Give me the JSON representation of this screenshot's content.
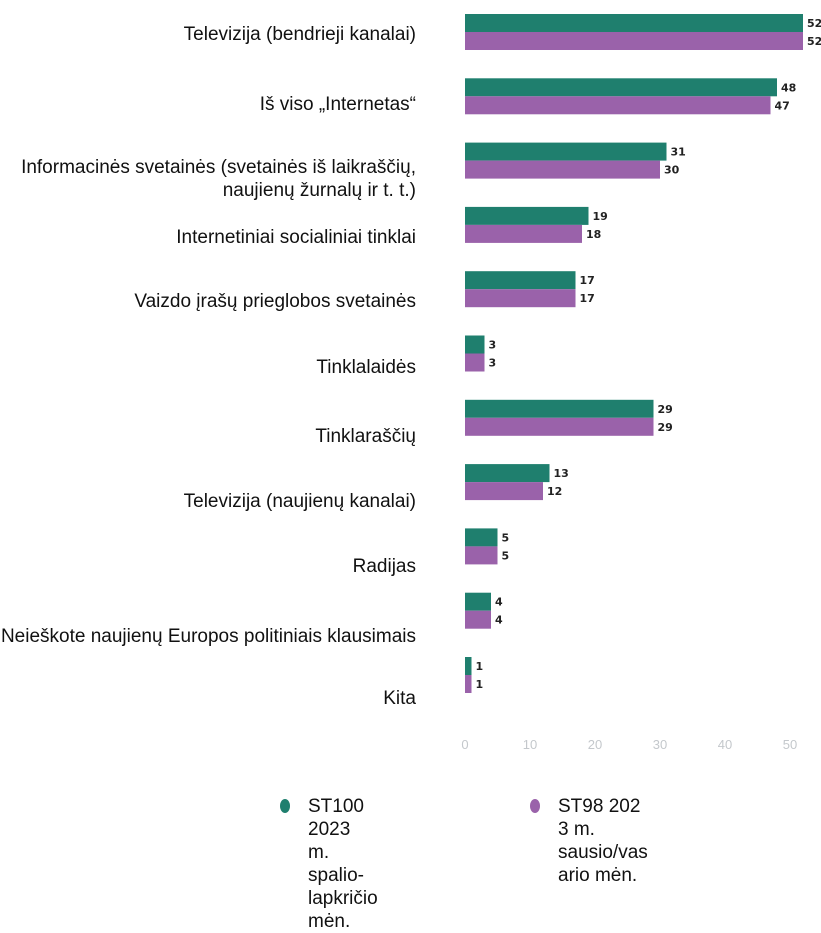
{
  "chart_data": {
    "type": "bar",
    "orientation": "horizontal",
    "categories": [
      "Televizija (bendrieji kanalai)",
      "Iš viso „Internetas“",
      "Informacinės svetainės (svetainės iš laikraščių, naujienų žurnalų ir t. t.)",
      "Internetiniai socialiniai tinklai",
      "Vaizdo įrašų prieglobos svetainės",
      "Tinklalaidės",
      "Tinklaraščių",
      "Televizija (naujienų kanalai)",
      "Radijas",
      "Neieškote naujienų Europos politiniais klausimais",
      "Kita"
    ],
    "series": [
      {
        "name": "ST100 2023 m. spalio-lapkričio mėn.",
        "color": "#1f7f6e",
        "values": [
          52,
          48,
          31,
          19,
          17,
          3,
          29,
          13,
          5,
          4,
          1
        ]
      },
      {
        "name": "ST98 2023 m. sausio/vasario mėn.",
        "color": "#9a62aa",
        "values": [
          52,
          47,
          30,
          18,
          17,
          3,
          29,
          12,
          5,
          4,
          1
        ]
      }
    ],
    "xticks": [
      "0",
      "10",
      "20",
      "30",
      "40",
      "50"
    ],
    "xlim": [
      0,
      52
    ],
    "grid": false,
    "legend_position": "bottom",
    "title": "",
    "xlabel": "",
    "ylabel": ""
  },
  "legend": [
    {
      "lines": [
        "ST100 2023",
        "m. spalio-",
        "lapkričio mėn."
      ]
    },
    {
      "lines": [
        "ST98 202",
        "3 m.",
        "sausio/vas",
        "ario mėn."
      ]
    }
  ]
}
